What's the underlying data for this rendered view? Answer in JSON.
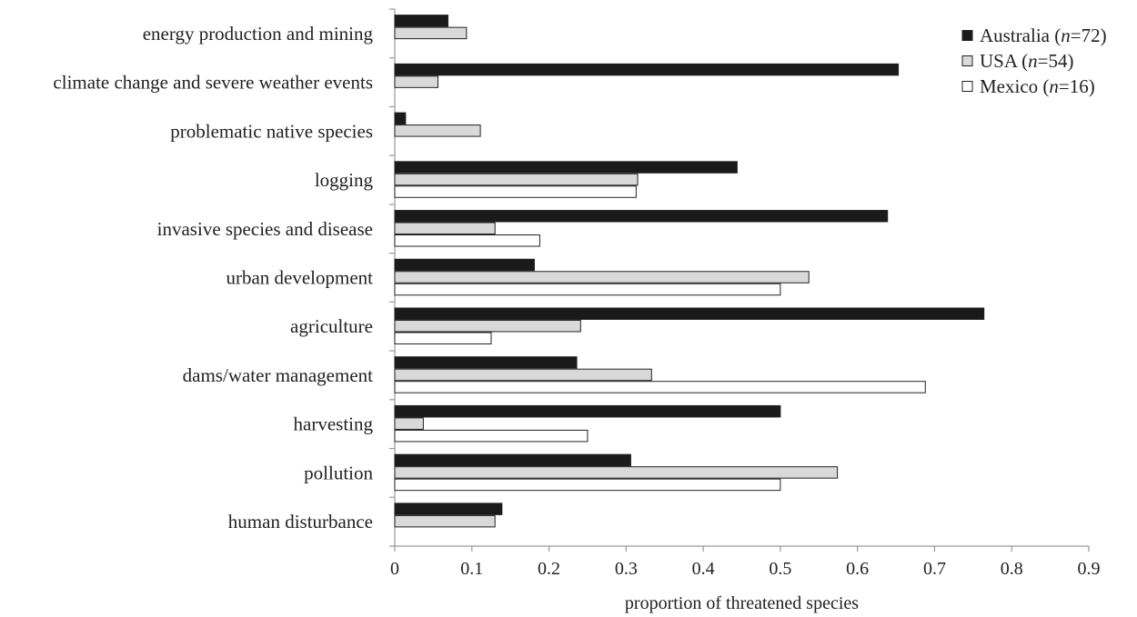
{
  "chart_data": {
    "type": "bar",
    "orientation": "horizontal",
    "categories": [
      "energy production and mining",
      "climate change and severe weather events",
      "problematic native species",
      "logging",
      "invasive species and disease",
      "urban development",
      "agriculture",
      "dams/water management",
      "harvesting",
      "pollution",
      "human disturbance"
    ],
    "series": [
      {
        "name": "Australia",
        "n_label": "72",
        "color": "#1a1a1a",
        "values": [
          0.069,
          0.653,
          0.014,
          0.444,
          0.639,
          0.181,
          0.764,
          0.236,
          0.5,
          0.306,
          0.139
        ]
      },
      {
        "name": "USA",
        "n_label": "54",
        "color": "#d9d9d9",
        "values": [
          0.093,
          0.056,
          0.111,
          0.315,
          0.13,
          0.537,
          0.241,
          0.333,
          0.037,
          0.574,
          0.13
        ]
      },
      {
        "name": "Mexico",
        "n_label": "16",
        "color": "#ffffff",
        "values": [
          0,
          0,
          0,
          0.313,
          0.188,
          0.5,
          0.125,
          0.688,
          0.25,
          0.5,
          0
        ]
      }
    ],
    "xlabel": "proportion of threatened species",
    "ylabel": "",
    "xlim": [
      0,
      0.9
    ],
    "xticks": [
      "0",
      "0.1",
      "0.2",
      "0.3",
      "0.4",
      "0.5",
      "0.6",
      "0.7",
      "0.8",
      "0.9"
    ],
    "grid": false,
    "legend_position": "top-right"
  }
}
